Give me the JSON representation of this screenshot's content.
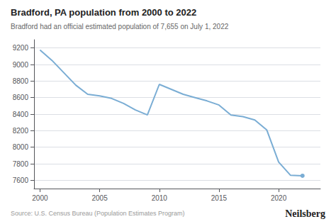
{
  "chart_data": {
    "type": "line",
    "title": "Bradford, PA population from 2000 to 2022",
    "subtitle": "Bradford had an official estimated population of 7,655 on July 1, 2022",
    "source": "Source: U.S. Census Bureau (Population Estimates Program)",
    "watermark": "Neilsberg",
    "x": [
      2000,
      2001,
      2002,
      2003,
      2004,
      2005,
      2006,
      2007,
      2008,
      2009,
      2010,
      2011,
      2012,
      2013,
      2014,
      2015,
      2016,
      2017,
      2018,
      2019,
      2020,
      2021,
      2022
    ],
    "values": [
      9175,
      9050,
      8900,
      8750,
      8640,
      8620,
      8590,
      8530,
      8450,
      8390,
      8760,
      8700,
      8640,
      8600,
      8560,
      8510,
      8390,
      8370,
      8330,
      8210,
      7820,
      7660,
      7655
    ],
    "color": "#7aadd4",
    "xlim": [
      1999.5,
      2023.5
    ],
    "xticks": [
      2000,
      2005,
      2010,
      2015,
      2020
    ],
    "ylim": [
      7500,
      9300
    ],
    "yticks": [
      7600,
      7800,
      8000,
      8200,
      8400,
      8600,
      8800,
      9000,
      9200
    ],
    "grid": true
  }
}
